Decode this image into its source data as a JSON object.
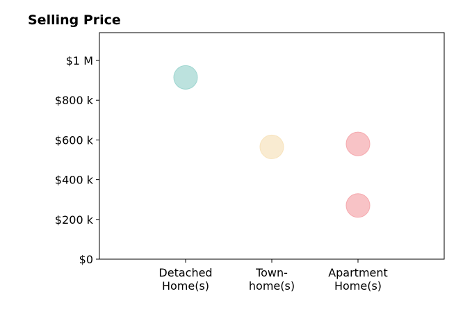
{
  "chart_data": {
    "type": "scatter",
    "title": "Selling Price",
    "xlabel": "",
    "ylabel": "",
    "categories": [
      [
        "Detached",
        "Home(s)"
      ],
      [
        "Town-",
        "home(s)"
      ],
      [
        "Apartment",
        "Home(s)"
      ]
    ],
    "y_ticks": [
      0,
      200000,
      400000,
      600000,
      800000,
      1000000
    ],
    "y_tick_labels": [
      "$0",
      "$200 k",
      "$400 k",
      "$600 k",
      "$800 k",
      "$1 M"
    ],
    "ylim": [
      0,
      1140000
    ],
    "xlim": [
      -1,
      3
    ],
    "grid": false,
    "points": [
      {
        "category_index": 0,
        "value": 915000,
        "color": "#9fd6d0"
      },
      {
        "category_index": 1,
        "value": 565000,
        "color": "#f7e3bd"
      },
      {
        "category_index": 2,
        "value": 580000,
        "color": "#f5a9ae"
      },
      {
        "category_index": 2,
        "value": 270000,
        "color": "#f5a9ae"
      }
    ]
  }
}
